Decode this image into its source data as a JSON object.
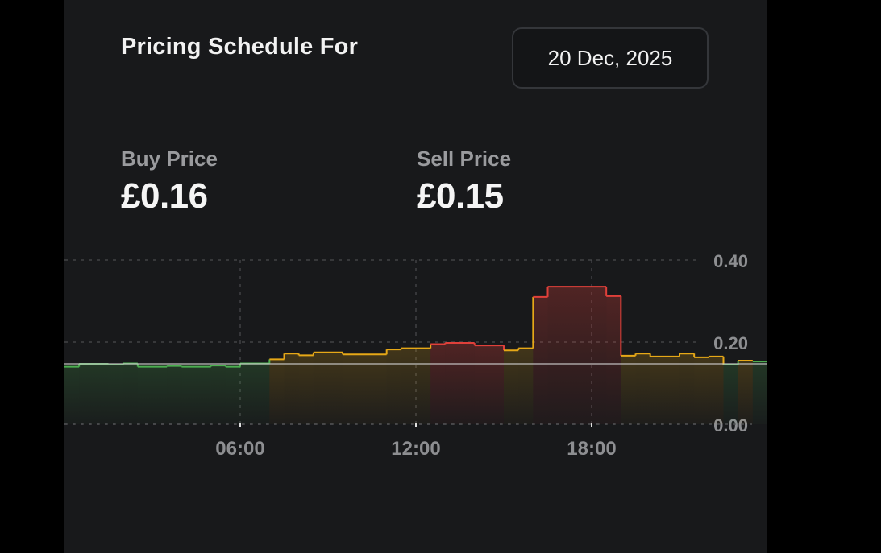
{
  "header": {
    "title": "Pricing Schedule For",
    "date": "20 Dec, 2025"
  },
  "prices": {
    "buy_label": "Buy Price",
    "buy_value": "£0.16",
    "sell_label": "Sell Price",
    "sell_value": "£0.15"
  },
  "colors": {
    "low": "#4caf50",
    "mid": "#e6a817",
    "high": "#e0403a",
    "sell_line": "#d0d0d0",
    "grid": "#4a4b4e",
    "axis_text": "#8d8e91"
  },
  "chart_data": {
    "type": "line",
    "step": true,
    "x_unit": "hour",
    "xlim": [
      0,
      24
    ],
    "ylim": [
      0,
      0.4
    ],
    "y_ticks": [
      "0.00",
      "0.20",
      "0.40"
    ],
    "y_tick_values": [
      0,
      0.2,
      0.4
    ],
    "x_ticks": [
      "06:00",
      "12:00",
      "18:00"
    ],
    "x_tick_values": [
      6,
      12,
      18
    ],
    "grid": true,
    "series": [
      {
        "values": [
          [
            0.0,
            0.14,
            "low"
          ],
          [
            0.5,
            0.147,
            "low"
          ],
          [
            1.5,
            0.145,
            "low"
          ],
          [
            2.0,
            0.148,
            "low"
          ],
          [
            2.5,
            0.14,
            "low"
          ],
          [
            3.5,
            0.142,
            "low"
          ],
          [
            4.0,
            0.14,
            "low"
          ],
          [
            5.0,
            0.143,
            "low"
          ],
          [
            5.5,
            0.14,
            "low"
          ],
          [
            6.0,
            0.148,
            "low"
          ],
          [
            7.0,
            0.158,
            "mid"
          ],
          [
            7.5,
            0.172,
            "mid"
          ],
          [
            8.0,
            0.168,
            "mid"
          ],
          [
            8.5,
            0.175,
            "mid"
          ],
          [
            9.5,
            0.17,
            "mid"
          ],
          [
            11.0,
            0.182,
            "mid"
          ],
          [
            11.5,
            0.185,
            "mid"
          ],
          [
            12.5,
            0.195,
            "high"
          ],
          [
            13.0,
            0.198,
            "high"
          ],
          [
            14.0,
            0.192,
            "high"
          ],
          [
            15.0,
            0.18,
            "mid"
          ],
          [
            15.5,
            0.185,
            "mid"
          ],
          [
            16.0,
            0.31,
            "high"
          ],
          [
            16.5,
            0.335,
            "high"
          ],
          [
            18.5,
            0.312,
            "high"
          ],
          [
            19.0,
            0.167,
            "mid"
          ],
          [
            19.5,
            0.172,
            "mid"
          ],
          [
            20.0,
            0.165,
            "mid"
          ],
          [
            21.0,
            0.172,
            "mid"
          ],
          [
            21.5,
            0.163,
            "mid"
          ],
          [
            22.0,
            0.165,
            "mid"
          ],
          [
            22.5,
            0.145,
            "low"
          ],
          [
            23.0,
            0.155,
            "mid"
          ],
          [
            23.5,
            0.153,
            "low"
          ],
          [
            24.0,
            0.153,
            "low"
          ]
        ]
      },
      {
        "values": [
          [
            0,
            0.147
          ],
          [
            24,
            0.147
          ]
        ]
      }
    ]
  }
}
